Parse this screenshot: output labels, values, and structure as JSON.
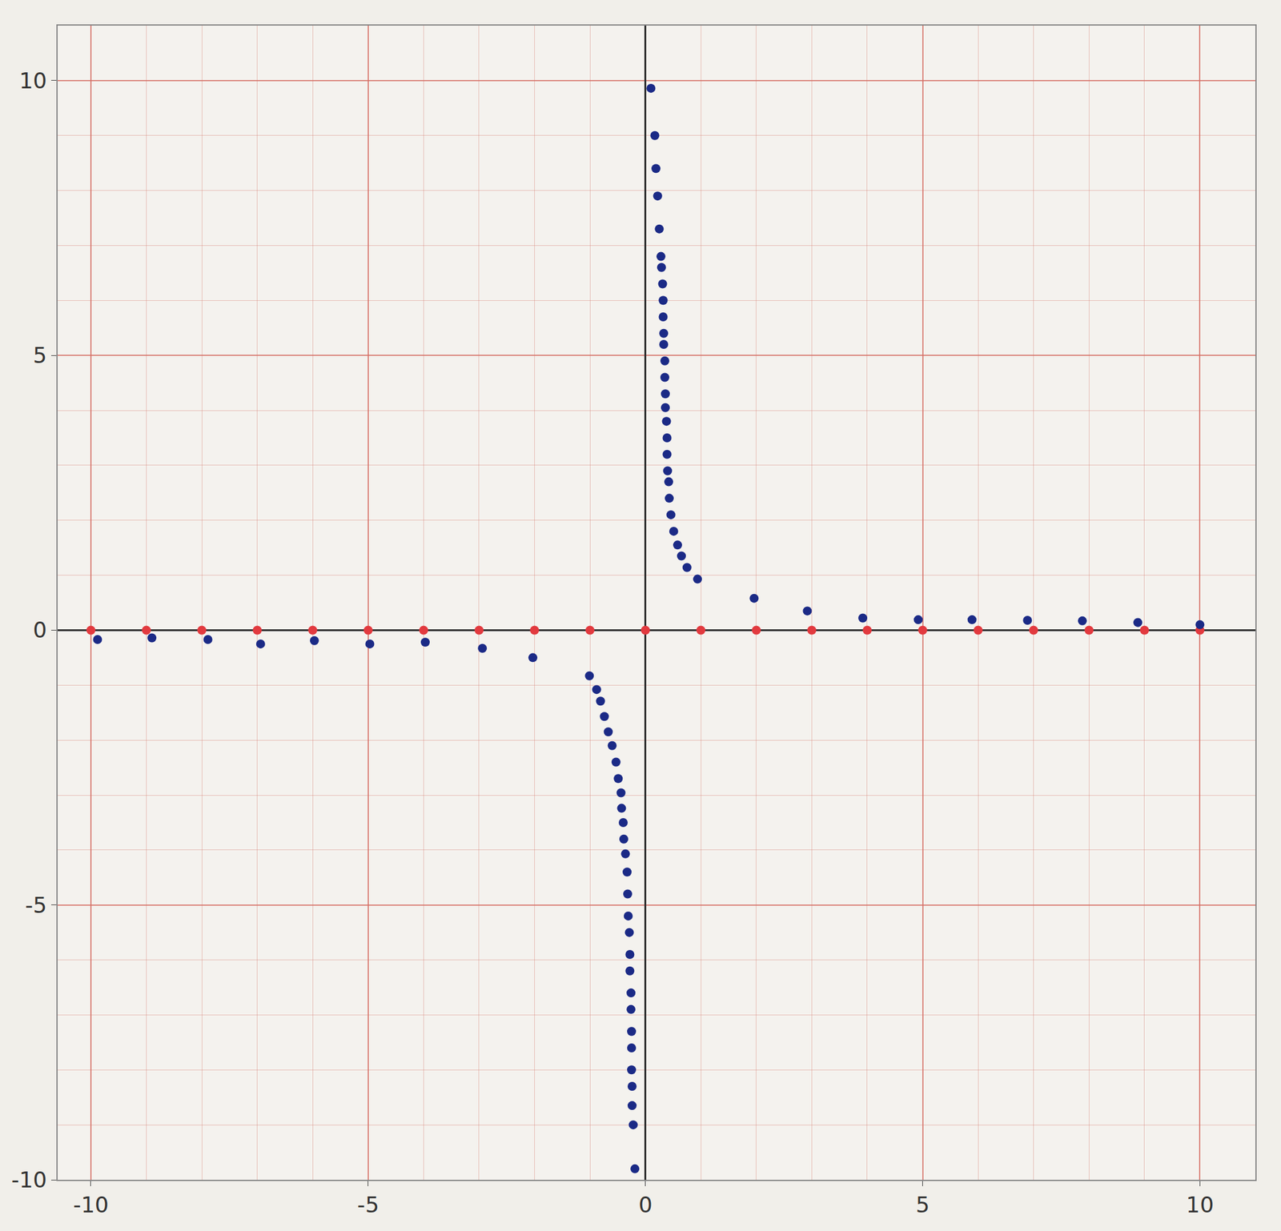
{
  "chart_data": {
    "type": "scatter",
    "xlim": [
      -10.6,
      11
    ],
    "ylim": [
      -10,
      11
    ],
    "xticks": [
      -10,
      -5,
      0,
      5,
      10
    ],
    "yticks": [
      -10,
      -5,
      0,
      5,
      10
    ],
    "grid": true,
    "series": [
      {
        "color": "#e23a3f",
        "marker": "circle",
        "x": [
          -10,
          -9,
          -8,
          -7,
          -6,
          -5,
          -4,
          -3,
          -2,
          -1,
          0,
          1,
          2,
          3,
          4,
          5,
          6,
          7,
          8,
          9,
          10
        ],
        "values": [
          0,
          0,
          0,
          0,
          0,
          0,
          0,
          0,
          0,
          0,
          0,
          0,
          0,
          0,
          0,
          0,
          0,
          0,
          0,
          0,
          0
        ]
      },
      {
        "color": "#1b2a86",
        "marker": "circle",
        "x": [
          -9.88,
          -8.9,
          -7.89,
          -6.94,
          -5.97,
          -4.97,
          -3.97,
          -2.94,
          -2.03,
          -1.01,
          -0.88,
          -0.81,
          -0.74,
          -0.67,
          -0.6,
          -0.53,
          -0.49,
          -0.44,
          -0.43,
          -0.4,
          -0.39,
          -0.36,
          -0.33,
          -0.32,
          -0.31,
          -0.29,
          -0.28,
          -0.28,
          -0.26,
          -0.26,
          -0.25,
          -0.25,
          -0.25,
          -0.24,
          -0.24,
          -0.22,
          -0.19,
          0.1,
          0.17,
          0.19,
          0.22,
          0.25,
          0.28,
          0.29,
          0.31,
          0.32,
          0.32,
          0.33,
          0.33,
          0.35,
          0.35,
          0.36,
          0.36,
          0.38,
          0.39,
          0.39,
          0.4,
          0.42,
          0.43,
          0.46,
          0.51,
          0.58,
          0.65,
          0.75,
          0.94,
          1.96,
          2.92,
          3.92,
          4.92,
          5.89,
          6.89,
          7.88,
          8.88,
          10
        ],
        "values": [
          -0.17,
          -0.14,
          -0.17,
          -0.25,
          -0.19,
          -0.25,
          -0.22,
          -0.33,
          -0.5,
          -0.83,
          -1.08,
          -1.29,
          -1.57,
          -1.85,
          -2.1,
          -2.4,
          -2.7,
          -2.96,
          -3.24,
          -3.5,
          -3.8,
          -4.07,
          -4.4,
          -4.8,
          -5.2,
          -5.5,
          -5.9,
          -6.2,
          -6.6,
          -6.9,
          -7.3,
          -7.6,
          -8.0,
          -8.3,
          -8.65,
          -9.0,
          -9.8,
          9.86,
          9.0,
          8.4,
          7.9,
          7.3,
          6.8,
          6.6,
          6.3,
          6.0,
          5.7,
          5.4,
          5.2,
          4.9,
          4.6,
          4.3,
          4.05,
          3.8,
          3.5,
          3.2,
          2.9,
          2.7,
          2.4,
          2.1,
          1.8,
          1.55,
          1.35,
          1.14,
          0.93,
          0.58,
          0.35,
          0.22,
          0.19,
          0.19,
          0.18,
          0.17,
          0.14,
          0.1
        ]
      }
    ]
  }
}
